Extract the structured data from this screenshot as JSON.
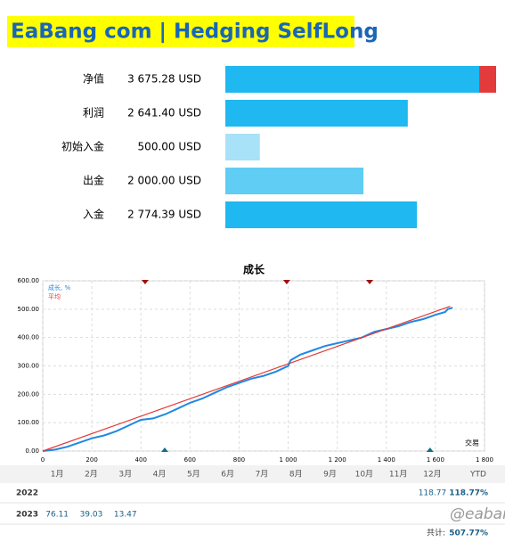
{
  "header": {
    "title": "EaBang com | Hedging SelfLong"
  },
  "summary": [
    {
      "label": "净值",
      "value_label": "3 675.28 USD",
      "value": 3675.28,
      "color": "#1fb8f0",
      "extra_color": "#e33b3b"
    },
    {
      "label": "利润",
      "value_label": "2 641.40 USD",
      "value": 2641.4,
      "color": "#1fb8f0"
    },
    {
      "label": "初始入金",
      "value_label": "500.00 USD",
      "value": 500.0,
      "color": "#a8e2f8"
    },
    {
      "label": "出金",
      "value_label": "2 000.00 USD",
      "value": 2000.0,
      "color": "#5fcdf4"
    },
    {
      "label": "入金",
      "value_label": "2 774.39 USD",
      "value": 2774.39,
      "color": "#1fb8f0"
    }
  ],
  "chart_data": {
    "type": "line",
    "title": "成长",
    "xlabel": "交易",
    "series": [
      {
        "name": "成长, %",
        "color": "#1e88e5",
        "x": [
          0,
          50,
          100,
          150,
          200,
          250,
          300,
          350,
          400,
          450,
          500,
          550,
          600,
          650,
          700,
          750,
          800,
          850,
          900,
          950,
          1000,
          1010,
          1050,
          1100,
          1150,
          1200,
          1250,
          1300,
          1350,
          1400,
          1450,
          1500,
          1550,
          1600,
          1640,
          1650,
          1670
        ],
        "values": [
          0,
          5,
          15,
          30,
          45,
          55,
          70,
          90,
          110,
          115,
          130,
          150,
          170,
          185,
          205,
          225,
          240,
          255,
          265,
          280,
          300,
          320,
          340,
          355,
          370,
          380,
          390,
          400,
          420,
          430,
          440,
          455,
          465,
          480,
          490,
          500,
          505
        ]
      },
      {
        "name": "平均",
        "color": "#e53935",
        "x": [
          0,
          1660
        ],
        "values": [
          0,
          510
        ]
      }
    ],
    "xlim": [
      0,
      1800
    ],
    "ylim": [
      0,
      600
    ],
    "xticks": [
      0,
      200,
      400,
      600,
      800,
      {
        "value": 1000,
        "label": "1 000"
      },
      {
        "value": 1200,
        "label": "1 200"
      },
      {
        "value": 1400,
        "label": "1 400"
      },
      {
        "value": 1600,
        "label": "1 600"
      },
      {
        "value": 1800,
        "label": "1 800"
      }
    ],
    "yticks": [
      {
        "value": 0,
        "label": "0.00"
      },
      {
        "value": 100,
        "label": "100.00"
      },
      {
        "value": 200,
        "label": "200.00"
      },
      {
        "value": 300,
        "label": "300.00"
      },
      {
        "value": 400,
        "label": "400.00"
      },
      {
        "value": 500,
        "label": "500.00"
      },
      {
        "value": 600,
        "label": "600.00"
      }
    ],
    "grid": true,
    "markers_top": [
      417,
      994,
      1332
    ],
    "markers_top_color": "#a01010",
    "markers_bottom": [
      497,
      1578
    ],
    "markers_bottom_color": "#136f8c"
  },
  "table": {
    "columns": [
      "1月",
      "2月",
      "3月",
      "4月",
      "5月",
      "6月",
      "7月",
      "8月",
      "9月",
      "10月",
      "11月",
      "12月",
      "YTD"
    ],
    "rows": [
      {
        "year": "2022",
        "cells": [
          null,
          null,
          null,
          null,
          null,
          null,
          null,
          null,
          null,
          null,
          null,
          "118.77",
          "118.77%"
        ]
      },
      {
        "year": "2023",
        "cells": [
          "76.11",
          "39.03",
          "13.47",
          null,
          null,
          null,
          null,
          null,
          null,
          null,
          null,
          null,
          null
        ]
      }
    ],
    "total_label": "共计:",
    "total": "507.77%"
  },
  "watermark": "@eabang"
}
